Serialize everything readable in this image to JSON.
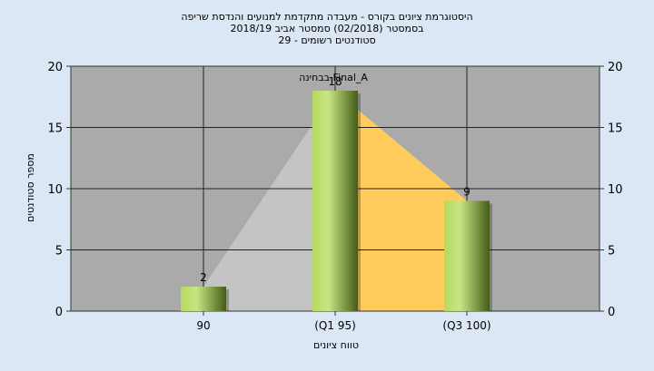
{
  "chart_data": {
    "type": "bar",
    "title_lines": [
      "היסטוגרמת ציונים בקורס - מעבדה מתקדמת למנועים והנדסת שריפה",
      "בסמסטר  (02/2018)  סמסטר אביב 2018/19",
      "סטודנטים רשומים - 29"
    ],
    "xlabel": "טווח ציונים",
    "ylabel": "מספר סטודנטים",
    "categories": [
      "90",
      "(Q1 95)",
      "(Q3 100)"
    ],
    "values": [
      2,
      18,
      9
    ],
    "value_labels": [
      "2",
      "18",
      "9"
    ],
    "ylim": [
      0,
      20
    ],
    "yticks": [
      0,
      5,
      10,
      15,
      20
    ],
    "grid": true,
    "annotation": "בבחינה Final_A",
    "colors": {
      "plot_bg": "#aaaaaa",
      "bar_light": "#c4e07a",
      "bar_dark": "#4f6b1f",
      "area_gray": "#c4c4c4",
      "area_yellow": "#ffcc5c",
      "grid": "#222222"
    }
  }
}
